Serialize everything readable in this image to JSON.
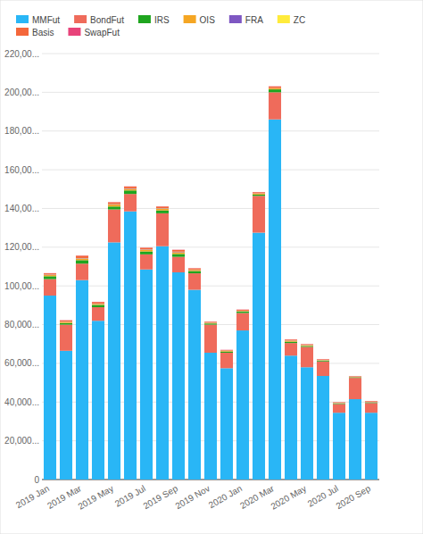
{
  "chart_data": {
    "type": "bar",
    "stacked": true,
    "grid": true,
    "legend": "top-left",
    "categories": [
      "2019 Jan",
      null,
      "2019 Mar",
      null,
      "2019 May",
      null,
      "2019 Jul",
      null,
      "2019 Sep",
      null,
      "2019 Nov",
      null,
      "2020 Jan",
      null,
      "2020 Mar",
      null,
      "2020 May",
      null,
      "2020 Jul",
      null,
      "2020 Sep"
    ],
    "ylim": [
      0,
      220000
    ],
    "yticks": [
      0,
      {
        "value": 20000,
        "label": "20,000..."
      },
      {
        "value": 40000,
        "label": "40,000..."
      },
      {
        "value": 60000,
        "label": "60,000..."
      },
      {
        "value": 80000,
        "label": "80,000..."
      },
      {
        "value": 100000,
        "label": "100,00..."
      },
      {
        "value": 120000,
        "label": "120,00..."
      },
      {
        "value": 140000,
        "label": "140,00..."
      },
      {
        "value": 160000,
        "label": "160,00..."
      },
      {
        "value": 180000,
        "label": "180,00..."
      },
      {
        "value": 200000,
        "label": "200,00..."
      },
      {
        "value": 220000,
        "label": "220,00..."
      }
    ],
    "series": [
      {
        "name": "MMFut",
        "color": "#29b6f6",
        "values": [
          95000,
          66500,
          103000,
          82000,
          122500,
          138500,
          108500,
          120500,
          107000,
          98000,
          65500,
          57500,
          77000,
          127500,
          186000,
          64000,
          58000,
          53500,
          34500,
          41500,
          34500
        ]
      },
      {
        "name": "BondFut",
        "color": "#ef6b5b",
        "values": [
          8500,
          13500,
          8500,
          7000,
          17000,
          9000,
          7800,
          17000,
          8000,
          8500,
          14500,
          8000,
          9000,
          19000,
          14000,
          6500,
          10500,
          7500,
          4500,
          11000,
          5000
        ]
      },
      {
        "name": "IRS",
        "color": "#1fa51f",
        "values": [
          1500,
          800,
          1800,
          1200,
          1500,
          1800,
          1500,
          1500,
          1500,
          1200,
          600,
          600,
          700,
          700,
          1500,
          700,
          500,
          400,
          300,
          300,
          300
        ]
      },
      {
        "name": "OIS",
        "color": "#f5a623",
        "values": [
          600,
          500,
          800,
          500,
          1000,
          800,
          800,
          900,
          900,
          600,
          300,
          300,
          300,
          400,
          500,
          400,
          300,
          200,
          200,
          200,
          200
        ]
      },
      {
        "name": "FRA",
        "color": "#7e57c2",
        "values": [
          200,
          100,
          200,
          100,
          200,
          200,
          200,
          200,
          200,
          100,
          100,
          100,
          100,
          100,
          100,
          100,
          100,
          100,
          100,
          100,
          100
        ]
      },
      {
        "name": "ZC",
        "color": "#ffeb3b",
        "values": [
          100,
          100,
          100,
          100,
          100,
          100,
          100,
          100,
          100,
          100,
          100,
          100,
          100,
          100,
          100,
          100,
          100,
          100,
          100,
          100,
          100
        ]
      },
      {
        "name": "Basis",
        "color": "#f4673b",
        "values": [
          600,
          700,
          1200,
          800,
          900,
          900,
          800,
          800,
          900,
          600,
          400,
          300,
          500,
          600,
          800,
          500,
          400,
          300,
          200,
          200,
          300
        ]
      },
      {
        "name": "SwapFut",
        "color": "#e8437a",
        "values": [
          100,
          100,
          100,
          100,
          100,
          100,
          100,
          100,
          100,
          100,
          100,
          100,
          100,
          100,
          100,
          100,
          100,
          100,
          100,
          100,
          100
        ]
      }
    ]
  }
}
